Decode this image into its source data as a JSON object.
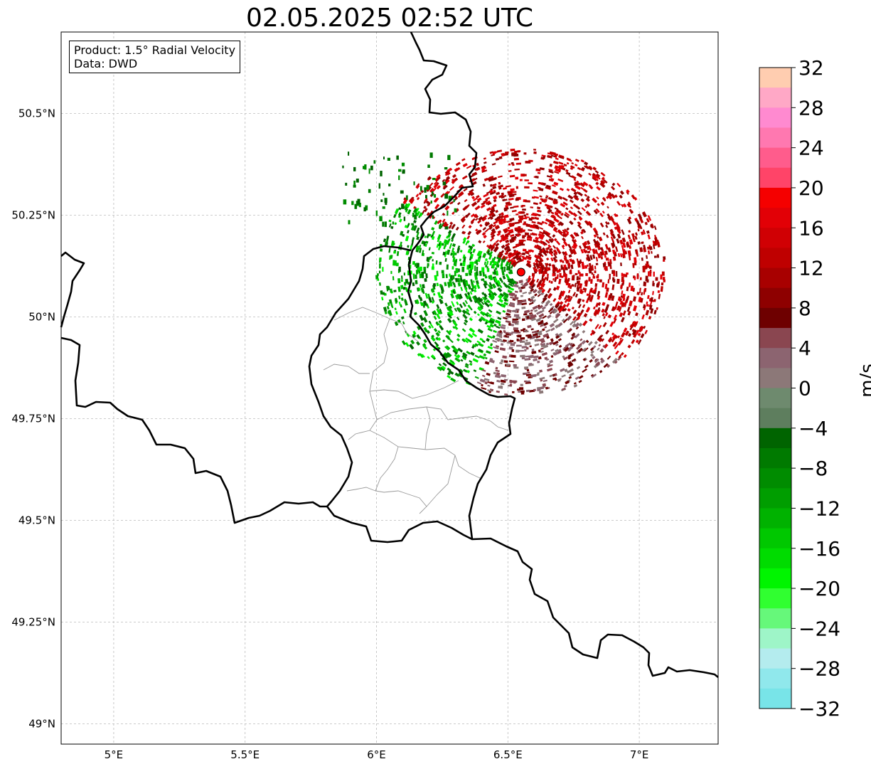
{
  "title": "02.05.2025 02:52 UTC",
  "info": {
    "product": "Product: 1.5° Radial Velocity",
    "data": "Data: DWD"
  },
  "map": {
    "lon_range": [
      4.8,
      7.3
    ],
    "lat_range": [
      48.95,
      50.7
    ],
    "lon_ticks": [
      {
        "value": 5.0,
        "label": "5°E"
      },
      {
        "value": 5.5,
        "label": "5.5°E"
      },
      {
        "value": 6.0,
        "label": "6°E"
      },
      {
        "value": 6.5,
        "label": "6.5°E"
      },
      {
        "value": 7.0,
        "label": "7°E"
      }
    ],
    "lat_ticks": [
      {
        "value": 49.0,
        "label": "49°N"
      },
      {
        "value": 49.25,
        "label": "49.25°N"
      },
      {
        "value": 49.5,
        "label": "49.5°N"
      },
      {
        "value": 49.75,
        "label": "49.75°N"
      },
      {
        "value": 50.0,
        "label": "50°N"
      },
      {
        "value": 50.25,
        "label": "50.25°N"
      },
      {
        "value": 50.5,
        "label": "50.5°N"
      }
    ],
    "radar_site": {
      "lon": 6.55,
      "lat": 50.11
    }
  },
  "colorbar": {
    "unit": "m/s",
    "min": -32,
    "max": 32,
    "ticks": [
      "32",
      "28",
      "24",
      "20",
      "16",
      "12",
      "8",
      "4",
      "0",
      "−4",
      "−8",
      "−12",
      "−16",
      "−20",
      "−24",
      "−28",
      "−32"
    ],
    "colors_top_to_bottom": [
      "#ffcdb0",
      "#ffa8c6",
      "#ff8ad0",
      "#ff78b0",
      "#ff5c8c",
      "#ff4468",
      "#f50000",
      "#e20006",
      "#d00004",
      "#bf0000",
      "#a80000",
      "#8e0000",
      "#6e0000",
      "#8a4650",
      "#8c6470",
      "#8c7878",
      "#6e8a6e",
      "#5e7e5e",
      "#006400",
      "#007a00",
      "#008c00",
      "#009e00",
      "#00b200",
      "#00c800",
      "#00dc00",
      "#00f500",
      "#30ff30",
      "#66f87a",
      "#9ef5c8",
      "#b4ecee",
      "#90e8ec",
      "#78e4e8"
    ]
  }
}
